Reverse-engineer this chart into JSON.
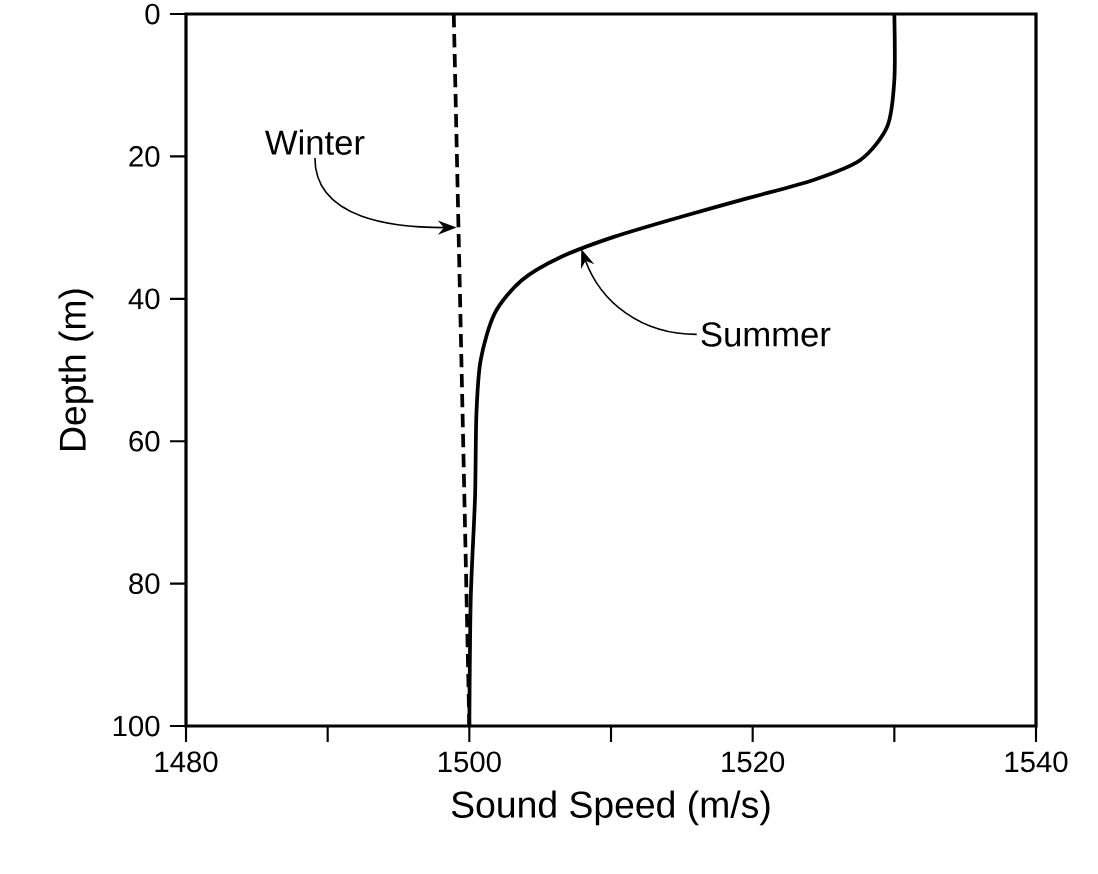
{
  "chart_data": {
    "type": "line",
    "xlabel": "Sound Speed  (m/s)",
    "ylabel": "Depth  (m)",
    "xlim": [
      1480,
      1540
    ],
    "ylim": [
      100,
      0
    ],
    "xticks": [
      1480,
      {
        "value": 1490,
        "label": null
      },
      1500,
      {
        "value": 1510,
        "label": null
      },
      1520,
      {
        "value": 1530,
        "label": null
      },
      1540
    ],
    "yticks": [
      0,
      20,
      40,
      60,
      80,
      100
    ],
    "marker": "none",
    "grid": false,
    "series": [
      {
        "color": "#000000",
        "line_style": "dashed",
        "x": [
          1498.9,
          1499.4,
          1500
        ],
        "values": [
          0,
          45,
          100
        ]
      },
      {
        "color": "#000000",
        "line_style": "solid",
        "x": [
          1530,
          1530,
          1529.5,
          1527.6,
          1524.3,
          1519.6,
          1514.9,
          1510.2,
          1506.5,
          1503.7,
          1501.8,
          1500.8,
          1500.5,
          1500.4,
          1500.1,
          1500
        ],
        "values": [
          0,
          9.3,
          15.8,
          20.5,
          23.3,
          25.9,
          28.5,
          31.3,
          34.1,
          37.4,
          42,
          48.6,
          56.1,
          68,
          82,
          100
        ]
      }
    ],
    "annotations": [
      {
        "text": "Winter",
        "x": 1499.1,
        "y": 30
      },
      {
        "text": "Summer",
        "x": 1507.9,
        "y": 33
      }
    ]
  }
}
